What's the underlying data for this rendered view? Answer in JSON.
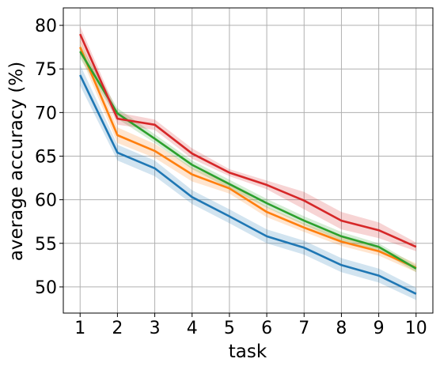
{
  "chart_data": {
    "type": "line",
    "xlabel": "task",
    "ylabel": "average accuracy (%)",
    "x": [
      1,
      2,
      3,
      4,
      5,
      6,
      7,
      8,
      9,
      10
    ],
    "xticks": [
      "1",
      "2",
      "3",
      "4",
      "5",
      "6",
      "7",
      "8",
      "9",
      "10"
    ],
    "yticks": [
      "50",
      "55",
      "60",
      "65",
      "70",
      "75",
      "80"
    ],
    "ylim": [
      47,
      82
    ],
    "xlim": [
      0.55,
      10.45
    ],
    "grid": true,
    "series": [
      {
        "color": "#1f77b4",
        "values": [
          74.3,
          65.4,
          63.6,
          60.3,
          58.1,
          55.8,
          54.5,
          52.5,
          51.3,
          49.2
        ],
        "band": [
          1.2,
          0.9,
          0.9,
          0.8,
          0.8,
          0.8,
          0.8,
          0.8,
          0.8,
          0.7
        ]
      },
      {
        "color": "#ff7f0e",
        "values": [
          77.5,
          67.4,
          65.6,
          62.9,
          61.3,
          58.6,
          56.8,
          55.2,
          54.1,
          52.2
        ],
        "band": [
          0.9,
          0.9,
          0.8,
          0.8,
          0.6,
          0.6,
          0.5,
          0.5,
          0.5,
          0.5
        ]
      },
      {
        "color": "#2ca02c",
        "values": [
          77.0,
          69.9,
          67.0,
          64.0,
          61.8,
          59.6,
          57.6,
          55.8,
          54.6,
          52.1
        ],
        "band": [
          0.8,
          0.6,
          0.5,
          0.5,
          0.5,
          0.5,
          0.5,
          0.5,
          0.4,
          0.4
        ]
      },
      {
        "color": "#d62728",
        "values": [
          79.0,
          69.3,
          68.6,
          65.3,
          63.1,
          61.7,
          59.9,
          57.6,
          56.5,
          54.6
        ],
        "band": [
          0.9,
          0.7,
          0.6,
          0.6,
          0.4,
          0.5,
          1.0,
          1.0,
          0.9,
          0.5
        ]
      }
    ]
  }
}
